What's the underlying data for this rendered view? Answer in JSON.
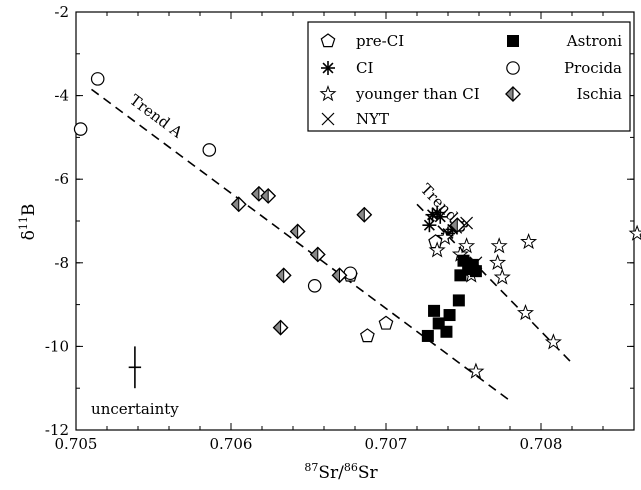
{
  "chart_data": {
    "type": "scatter",
    "xlabel": {
      "pre_sup": "87",
      "main": "Sr/",
      "mid_sup": "86",
      "tail": "Sr"
    },
    "ylabel": {
      "main": "δ",
      "sup": "11",
      "tail": "B"
    },
    "xlim": [
      0.705,
      0.7086
    ],
    "ylim": [
      -12,
      -2
    ],
    "x_ticks": [
      {
        "value": 0.705,
        "label": "0.705"
      },
      {
        "value": 0.706,
        "label": "0.706"
      },
      {
        "value": 0.707,
        "label": "0.707"
      },
      {
        "value": 0.708,
        "label": "0.708"
      }
    ],
    "y_ticks": [
      {
        "value": -2,
        "label": "-2"
      },
      {
        "value": -4,
        "label": "-4"
      },
      {
        "value": -6,
        "label": "-6"
      },
      {
        "value": -8,
        "label": "-8"
      },
      {
        "value": -10,
        "label": "-10"
      },
      {
        "value": -12,
        "label": "-12"
      }
    ],
    "x_minor_step": 0.0002,
    "y_minor_step": 1,
    "legend_position": "top-right",
    "series": [
      {
        "name": "pre-CI",
        "marker": "pentagon",
        "points": [
          {
            "x": 0.70677,
            "y": -8.3
          },
          {
            "x": 0.70688,
            "y": -9.75
          },
          {
            "x": 0.707,
            "y": -9.45
          },
          {
            "x": 0.70732,
            "y": -7.5
          }
        ]
      },
      {
        "name": "CI",
        "marker": "asterisk",
        "points": [
          {
            "x": 0.70728,
            "y": -7.1
          },
          {
            "x": 0.7073,
            "y": -6.85
          },
          {
            "x": 0.70733,
            "y": -6.8
          },
          {
            "x": 0.70735,
            "y": -6.9
          },
          {
            "x": 0.7074,
            "y": -7.3
          },
          {
            "x": 0.70743,
            "y": -7.2
          }
        ]
      },
      {
        "name": "younger than CI",
        "marker": "star",
        "points": [
          {
            "x": 0.70733,
            "y": -7.7
          },
          {
            "x": 0.70738,
            "y": -7.4
          },
          {
            "x": 0.70748,
            "y": -7.8
          },
          {
            "x": 0.70752,
            "y": -7.6
          },
          {
            "x": 0.70755,
            "y": -8.3
          },
          {
            "x": 0.70773,
            "y": -7.6
          },
          {
            "x": 0.70772,
            "y": -8.0
          },
          {
            "x": 0.70775,
            "y": -8.35
          },
          {
            "x": 0.70792,
            "y": -7.5
          },
          {
            "x": 0.7079,
            "y": -9.2
          },
          {
            "x": 0.70808,
            "y": -9.9
          },
          {
            "x": 0.70862,
            "y": -7.3
          },
          {
            "x": 0.70758,
            "y": -10.6
          }
        ]
      },
      {
        "name": "NYT",
        "marker": "x",
        "points": [
          {
            "x": 0.70745,
            "y": -7.15
          },
          {
            "x": 0.70752,
            "y": -7.05
          },
          {
            "x": 0.70758,
            "y": -8.0
          }
        ]
      },
      {
        "name": "Astroni",
        "marker": "filled-square",
        "points": [
          {
            "x": 0.70727,
            "y": -9.75
          },
          {
            "x": 0.70731,
            "y": -9.15
          },
          {
            "x": 0.70734,
            "y": -9.45
          },
          {
            "x": 0.70739,
            "y": -9.65
          },
          {
            "x": 0.70741,
            "y": -9.25
          },
          {
            "x": 0.70747,
            "y": -8.9
          },
          {
            "x": 0.70748,
            "y": -8.3
          },
          {
            "x": 0.7075,
            "y": -7.95
          },
          {
            "x": 0.70753,
            "y": -8.15
          },
          {
            "x": 0.70756,
            "y": -8.05
          },
          {
            "x": 0.70758,
            "y": -8.2
          }
        ]
      },
      {
        "name": "Procida",
        "marker": "circle",
        "points": [
          {
            "x": 0.70503,
            "y": -4.8
          },
          {
            "x": 0.70514,
            "y": -3.6
          },
          {
            "x": 0.70586,
            "y": -5.3
          },
          {
            "x": 0.70654,
            "y": -8.55
          },
          {
            "x": 0.70677,
            "y": -8.25
          }
        ]
      },
      {
        "name": "Ischia",
        "marker": "half-diamond",
        "points": [
          {
            "x": 0.70605,
            "y": -6.6
          },
          {
            "x": 0.70618,
            "y": -6.35
          },
          {
            "x": 0.70624,
            "y": -6.4
          },
          {
            "x": 0.70632,
            "y": -9.55
          },
          {
            "x": 0.70634,
            "y": -8.3
          },
          {
            "x": 0.70643,
            "y": -7.25
          },
          {
            "x": 0.70656,
            "y": -7.8
          },
          {
            "x": 0.7067,
            "y": -8.3
          },
          {
            "x": 0.70686,
            "y": -6.85
          },
          {
            "x": 0.70746,
            "y": -7.1
          }
        ]
      }
    ],
    "trend_lines": [
      {
        "label": "Trend A",
        "x1": 0.7051,
        "y1": -3.85,
        "x2": 0.7078,
        "y2": -11.3
      },
      {
        "label": "Trend B",
        "x1": 0.7072,
        "y1": -6.6,
        "x2": 0.7082,
        "y2": -10.4
      }
    ],
    "uncertainty": {
      "label": "uncertainty",
      "x": 0.70538,
      "y": -10.5,
      "dx": 4e-05,
      "dy": 0.5
    }
  }
}
